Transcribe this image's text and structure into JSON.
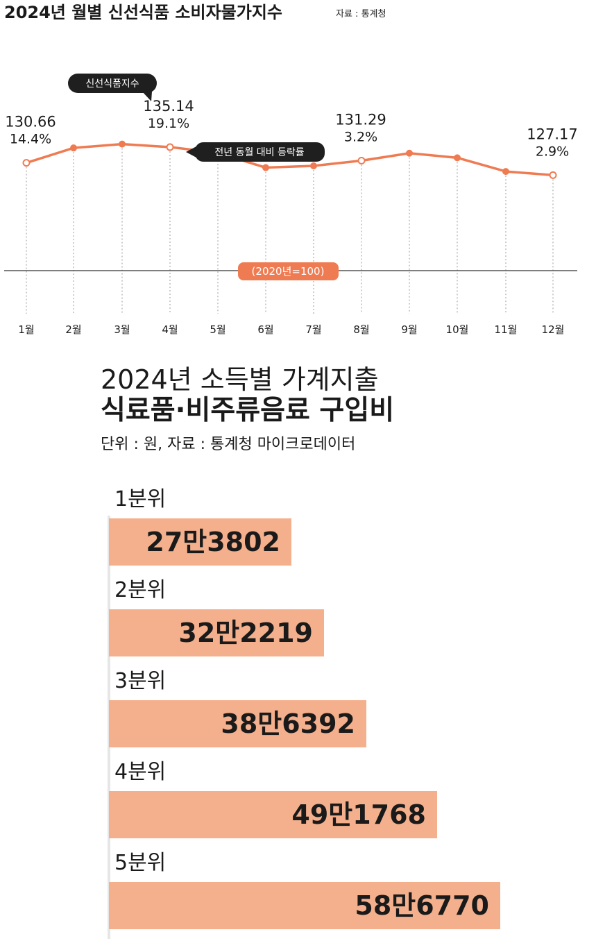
{
  "line_chart": {
    "title": "2024년 월별 신선식품 소비자물가지수",
    "source": "자료 : 통계청",
    "series_tag": "신선식품지수",
    "yoy_tag": "전년 동월 대비 등락률",
    "baseline_label": "(2020년=100)",
    "callouts": [
      {
        "month": "1월",
        "value": "130.66",
        "pct": "14.4%"
      },
      {
        "month": "4월",
        "value": "135.14",
        "pct": "19.1%"
      },
      {
        "month": "8월",
        "value": "131.29",
        "pct": "3.2%"
      },
      {
        "month": "12월",
        "value": "127.17",
        "pct": "2.9%"
      }
    ],
    "colors": {
      "line": "#ef7b52",
      "tag": "#1f1f1f",
      "baseline": "#ef7b52",
      "guide": "#9a9a9a"
    }
  },
  "bar_chart": {
    "title_line1": "2024년 소득별 가계지출",
    "title_line2": "식료품·비주류음료 구입비",
    "subtitle": "단위 : 원, 자료 : 통계청 마이크로데이터",
    "groups": [
      {
        "label": "1분위",
        "value_text": "27만3802"
      },
      {
        "label": "2분위",
        "value_text": "32만2219"
      },
      {
        "label": "3분위",
        "value_text": "38만6392"
      },
      {
        "label": "4분위",
        "value_text": "49만1768"
      },
      {
        "label": "5분위",
        "value_text": "58만6770"
      }
    ],
    "bar_color": "#f4b08d"
  },
  "chart_data": [
    {
      "type": "line",
      "title": "2024년 월별 신선식품 소비자물가지수",
      "categories": [
        "1월",
        "2월",
        "3월",
        "4월",
        "5월",
        "6월",
        "7월",
        "8월",
        "9월",
        "10월",
        "11월",
        "12월"
      ],
      "series": [
        {
          "name": "신선식품지수",
          "values": [
            130.66,
            134.9,
            136.0,
            135.14,
            133.5,
            129.3,
            129.8,
            131.29,
            133.4,
            132.1,
            128.2,
            127.17
          ]
        }
      ],
      "yoy_change_percent": {
        "1월": 14.4,
        "4월": 19.1,
        "8월": 3.2,
        "12월": 2.9
      },
      "baseline": 100,
      "ylim": [
        100,
        137.5
      ],
      "grid": "vertical dotted guides",
      "legend": "none"
    },
    {
      "type": "bar",
      "orientation": "horizontal",
      "title": "2024년 소득별 가계지출 식료품·비주류음료 구입비",
      "categories": [
        "1분위",
        "2분위",
        "3분위",
        "4분위",
        "5분위"
      ],
      "values": [
        273802,
        322219,
        386392,
        491768,
        586770
      ],
      "unit": "원"
    }
  ]
}
